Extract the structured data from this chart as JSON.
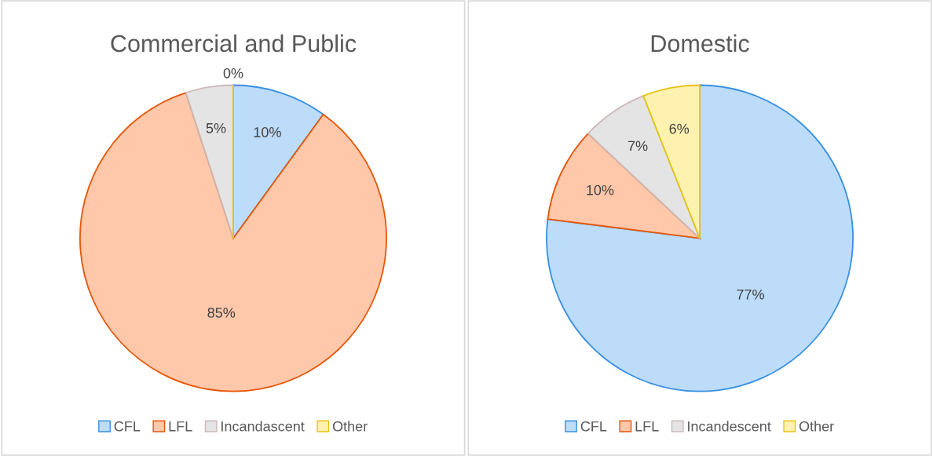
{
  "chart_data": [
    {
      "type": "pie",
      "title": "Commercial and Public",
      "categories": [
        "CFL",
        "LFL",
        "Incandascent",
        "Other"
      ],
      "values": [
        10,
        85,
        5,
        0
      ],
      "value_labels": [
        "10%",
        "85%",
        "5%",
        "0%"
      ],
      "colors": [
        "#bcdcfa",
        "#ffc8aa",
        "#e4e4e4",
        "#fff2b0"
      ],
      "legend": "bottom"
    },
    {
      "type": "pie",
      "title": "Domestic",
      "categories": [
        "CFL",
        "LFL",
        "Incandescent",
        "Other"
      ],
      "values": [
        77,
        10,
        7,
        6
      ],
      "value_labels": [
        "77%",
        "10%",
        "7%",
        "6%"
      ],
      "colors": [
        "#bcdcfa",
        "#ffc8aa",
        "#e4e4e4",
        "#fff2b0"
      ],
      "legend": "bottom"
    }
  ]
}
